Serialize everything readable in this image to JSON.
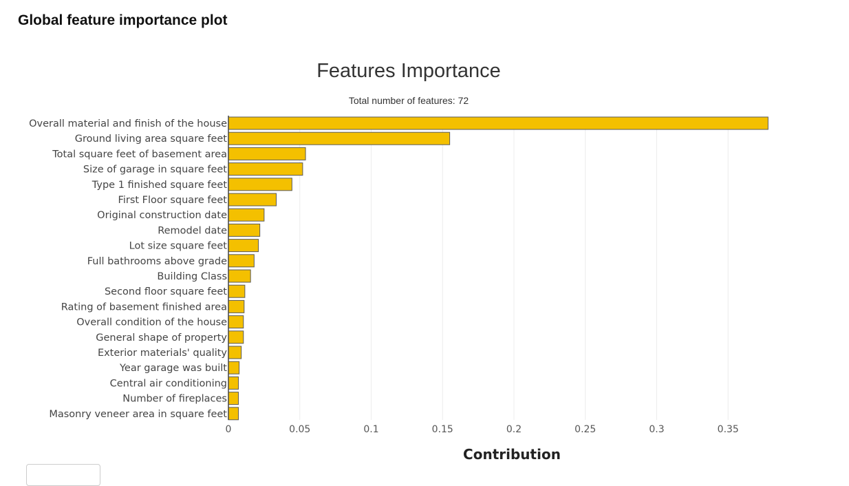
{
  "page": {
    "heading": "Global feature importance plot"
  },
  "chart_data": {
    "type": "bar",
    "orientation": "horizontal",
    "title": "Features Importance",
    "subtitle": "Total number of features: 72",
    "xlabel": "Contribution",
    "ylabel": "",
    "xlim": [
      0,
      0.378
    ],
    "xticks": [
      "0",
      "0.05",
      "0.1",
      "0.15",
      "0.2",
      "0.25",
      "0.3",
      "0.35"
    ],
    "grid": true,
    "bar_color": "#f4c000",
    "bar_edge_color": "#5a5a5a",
    "categories": [
      "Overall material and finish of the house",
      "Ground living area square feet",
      "Total square feet of basement area",
      "Size of garage in square feet",
      "Type 1 finished square feet",
      "First Floor square feet",
      "Original construction date",
      "Remodel date",
      "Lot size square feet",
      "Full bathrooms above grade",
      "Building Class",
      "Second floor square feet",
      "Rating of basement finished area",
      "Overall condition of the house",
      "General shape of property",
      "Exterior materials' quality",
      "Year garage was built",
      "Central air conditioning",
      "Number of fireplaces",
      "Masonry veneer area in square feet"
    ],
    "values": [
      0.378,
      0.155,
      0.054,
      0.052,
      0.0445,
      0.0335,
      0.025,
      0.022,
      0.021,
      0.018,
      0.0155,
      0.0115,
      0.011,
      0.0105,
      0.0105,
      0.009,
      0.0075,
      0.007,
      0.007,
      0.007
    ]
  }
}
